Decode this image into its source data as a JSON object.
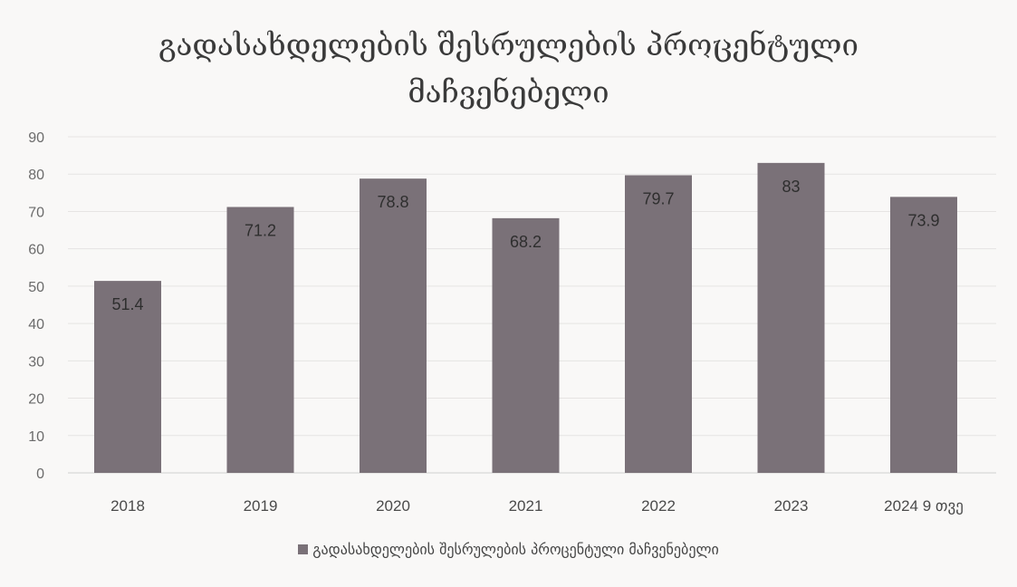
{
  "chart_data": {
    "type": "bar",
    "title_lines": [
      "გადასახდელების შესრულების პროცენტული",
      "მაჩვენებელი"
    ],
    "categories": [
      "2018",
      "2019",
      "2020",
      "2021",
      "2022",
      "2023",
      "2024 9 თვე"
    ],
    "series": [
      {
        "name": "გადასახდელების შესრულების პროცენტული მაჩვენებელი",
        "values": [
          51.4,
          71.2,
          78.8,
          68.2,
          79.7,
          83,
          73.9
        ],
        "labels": [
          "51.4",
          "71.2",
          "78.8",
          "68.2",
          "79.7",
          "83",
          "73.9"
        ]
      }
    ],
    "y_ticks": [
      "0",
      "10",
      "20",
      "30",
      "40",
      "50",
      "60",
      "70",
      "80",
      "90"
    ],
    "ylim": [
      0,
      90
    ],
    "grid": true,
    "legend_position": "bottom",
    "bar_color": "#7a7178"
  }
}
